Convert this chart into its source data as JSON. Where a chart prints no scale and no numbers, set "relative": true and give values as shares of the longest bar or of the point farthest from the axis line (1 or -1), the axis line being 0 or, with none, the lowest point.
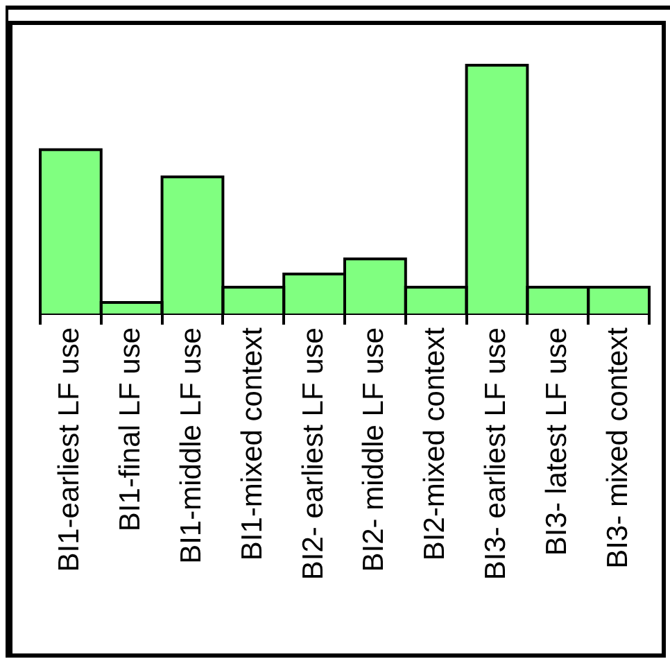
{
  "chart_data": {
    "type": "bar",
    "relative": true,
    "color": "#80ff80",
    "categories": [
      "BI1-earliest LF use",
      "BI1-final LF use",
      "BI1-middle LF use",
      "BI1-mixed context",
      "BI2- earliest LF use",
      "BI2- middle LF use",
      "BI2-mixed context",
      "BI3- earliest LF use",
      "BI3- latest LF use",
      "BI3- mixed context"
    ],
    "values": [
      0.66,
      0.045,
      0.55,
      0.106,
      0.159,
      0.22,
      0.106,
      1,
      0.106,
      0.106
    ]
  }
}
